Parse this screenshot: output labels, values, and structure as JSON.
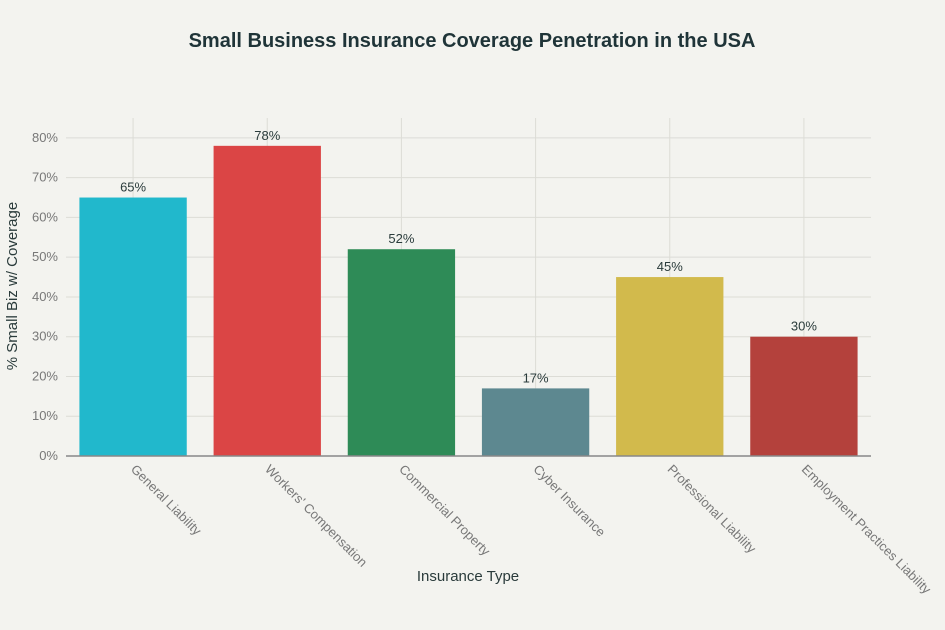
{
  "chart_data": {
    "type": "bar",
    "title": "Small Business Insurance Coverage Penetration in the USA",
    "xlabel": "Insurance Type",
    "ylabel": "% Small Biz w/ Coverage",
    "categories": [
      "General Liability",
      "Workers' Compensation",
      "Commercial Property",
      "Cyber Insurance",
      "Professional Liability",
      "Employment Practices Liability"
    ],
    "values": [
      65,
      78,
      52,
      17,
      45,
      30
    ],
    "data_labels": [
      "65%",
      "78%",
      "52%",
      "17%",
      "45%",
      "30%"
    ],
    "colors": [
      "#21b8cc",
      "#db4545",
      "#2e8b57",
      "#5d8890",
      "#d2ba4c",
      "#b4413c"
    ],
    "ylim": [
      0,
      85
    ],
    "yticks": [
      0,
      10,
      20,
      30,
      40,
      50,
      60,
      70,
      80
    ],
    "ytick_labels": [
      "0%",
      "10%",
      "20%",
      "30%",
      "40%",
      "50%",
      "60%",
      "70%",
      "80%"
    ],
    "grid": true,
    "legend": "none"
  }
}
